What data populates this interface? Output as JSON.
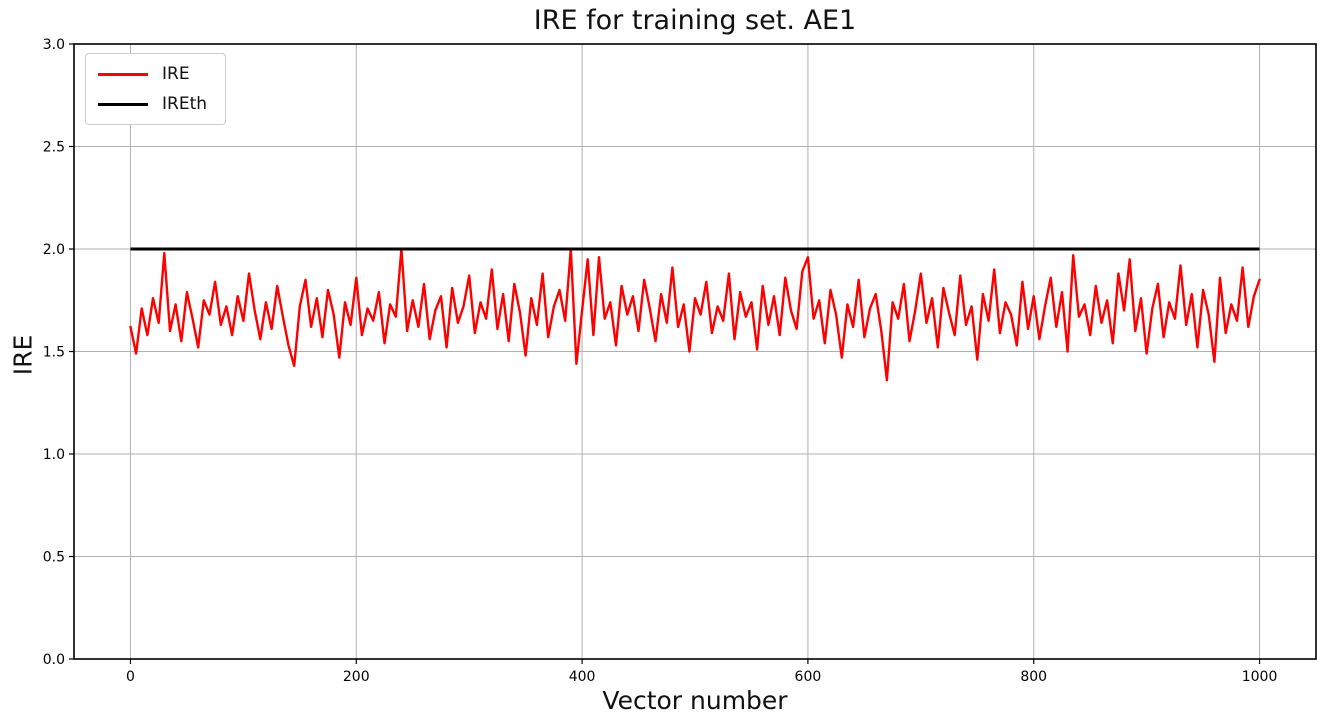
{
  "chart_data": {
    "type": "line",
    "title": "IRE for training set. AE1",
    "xlabel": "Vector number",
    "ylabel": "IRE",
    "xlim": [
      -50,
      1050
    ],
    "ylim": [
      0.0,
      3.0
    ],
    "grid": true,
    "legend_position": "upper left",
    "xticks": [
      0,
      200,
      400,
      600,
      800,
      1000
    ],
    "xtick_labels": [
      "0",
      "200",
      "400",
      "600",
      "800",
      "1000"
    ],
    "yticks": [
      0.0,
      0.5,
      1.0,
      1.5,
      2.0,
      2.5,
      3.0
    ],
    "ytick_labels": [
      "0.0",
      "0.5",
      "1.0",
      "1.5",
      "2.0",
      "2.5",
      "3.0"
    ],
    "colors": {
      "ire_line": "#ff0000",
      "ireth_line": "#000000",
      "grid": "#b0b0b0",
      "spine": "#000000",
      "background": "#ffffff"
    },
    "series": [
      {
        "name": "IRE",
        "color": "#ff0000",
        "linewidth": 2.4,
        "x_start": 0,
        "x_step": 5,
        "values": [
          1.62,
          1.49,
          1.71,
          1.58,
          1.76,
          1.64,
          1.98,
          1.6,
          1.73,
          1.55,
          1.79,
          1.66,
          1.52,
          1.75,
          1.68,
          1.84,
          1.63,
          1.72,
          1.58,
          1.77,
          1.65,
          1.88,
          1.7,
          1.56,
          1.74,
          1.61,
          1.82,
          1.67,
          1.53,
          1.43,
          1.72,
          1.85,
          1.62,
          1.76,
          1.57,
          1.8,
          1.68,
          1.47,
          1.74,
          1.63,
          1.86,
          1.58,
          1.71,
          1.65,
          1.79,
          1.54,
          1.73,
          1.67,
          2.0,
          1.6,
          1.75,
          1.62,
          1.83,
          1.56,
          1.7,
          1.77,
          1.52,
          1.81,
          1.64,
          1.72,
          1.87,
          1.59,
          1.74,
          1.66,
          1.9,
          1.61,
          1.78,
          1.55,
          1.83,
          1.69,
          1.48,
          1.76,
          1.63,
          1.88,
          1.57,
          1.72,
          1.8,
          1.65,
          2.0,
          1.44,
          1.7,
          1.95,
          1.58,
          1.96,
          1.66,
          1.74,
          1.53,
          1.82,
          1.68,
          1.77,
          1.6,
          1.85,
          1.71,
          1.55,
          1.78,
          1.64,
          1.91,
          1.62,
          1.73,
          1.5,
          1.76,
          1.68,
          1.84,
          1.59,
          1.72,
          1.65,
          1.88,
          1.56,
          1.79,
          1.67,
          1.74,
          1.51,
          1.82,
          1.63,
          1.77,
          1.58,
          1.86,
          1.7,
          1.61,
          1.89,
          1.96,
          1.66,
          1.75,
          1.54,
          1.8,
          1.68,
          1.47,
          1.73,
          1.62,
          1.85,
          1.57,
          1.71,
          1.78,
          1.6,
          1.36,
          1.74,
          1.66,
          1.83,
          1.55,
          1.7,
          1.88,
          1.64,
          1.76,
          1.52,
          1.81,
          1.69,
          1.58,
          1.87,
          1.63,
          1.72,
          1.46,
          1.78,
          1.65,
          1.9,
          1.59,
          1.74,
          1.68,
          1.53,
          1.84,
          1.61,
          1.77,
          1.56,
          1.72,
          1.86,
          1.62,
          1.79,
          1.5,
          1.97,
          1.67,
          1.73,
          1.58,
          1.82,
          1.64,
          1.75,
          1.54,
          1.88,
          1.7,
          1.95,
          1.6,
          1.76,
          1.49,
          1.71,
          1.83,
          1.57,
          1.74,
          1.66,
          1.92,
          1.63,
          1.78,
          1.52,
          1.8,
          1.68,
          1.45,
          1.86,
          1.59,
          1.73,
          1.65,
          1.91,
          1.62,
          1.77,
          1.85
        ]
      },
      {
        "name": "IREth",
        "color": "#000000",
        "linewidth": 3,
        "x": [
          0,
          1000
        ],
        "values": [
          2.0,
          2.0
        ]
      }
    ]
  }
}
